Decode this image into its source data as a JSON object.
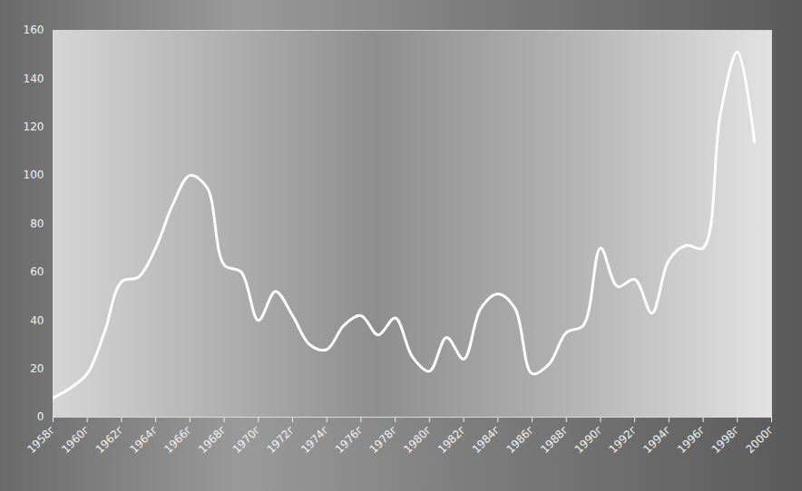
{
  "chart_data": {
    "type": "line",
    "x": [
      1958,
      1959,
      1960,
      1961,
      1962,
      1963,
      1964,
      1965,
      1966,
      1967,
      1968,
      1969,
      1970,
      1971,
      1972,
      1973,
      1974,
      1975,
      1976,
      1977,
      1978,
      1979,
      1980,
      1981,
      1982,
      1983,
      1984,
      1985,
      1986,
      1987,
      1988,
      1989,
      1990,
      1991,
      1992,
      1993,
      1994,
      1995,
      1996,
      1997,
      1998,
      1999
    ],
    "values": [
      8,
      12,
      18,
      35,
      56,
      58,
      70,
      88,
      100,
      95,
      63,
      60,
      40,
      52,
      42,
      30,
      28,
      38,
      42,
      34,
      41,
      25,
      19,
      33,
      24,
      45,
      51,
      45,
      18,
      22,
      35,
      38,
      70,
      54,
      57,
      43,
      65,
      71,
      70,
      125,
      151,
      114
    ],
    "color": "#ffffff",
    "xlim": [
      1958,
      2000
    ],
    "xticks": [
      {
        "value": 1958,
        "label": "1958г"
      },
      {
        "value": 1960,
        "label": "1960г"
      },
      {
        "value": 1962,
        "label": "1962г"
      },
      {
        "value": 1964,
        "label": "1964г"
      },
      {
        "value": 1966,
        "label": "1966г"
      },
      {
        "value": 1968,
        "label": "1968г"
      },
      {
        "value": 1970,
        "label": "1970г"
      },
      {
        "value": 1972,
        "label": "1972г"
      },
      {
        "value": 1974,
        "label": "1974г"
      },
      {
        "value": 1976,
        "label": "1976г"
      },
      {
        "value": 1978,
        "label": "1978г"
      },
      {
        "value": 1980,
        "label": "1980г"
      },
      {
        "value": 1982,
        "label": "1982г"
      },
      {
        "value": 1984,
        "label": "1984г"
      },
      {
        "value": 1986,
        "label": "1986г"
      },
      {
        "value": 1988,
        "label": "1988г"
      },
      {
        "value": 1990,
        "label": "1990г"
      },
      {
        "value": 1992,
        "label": "1992г"
      },
      {
        "value": 1994,
        "label": "1994г"
      },
      {
        "value": 1996,
        "label": "1996г"
      },
      {
        "value": 1998,
        "label": "1998г"
      },
      {
        "value": 2000,
        "label": "2000г"
      }
    ],
    "ylim": [
      0,
      160
    ],
    "yticks": [
      0,
      20,
      40,
      60,
      80,
      100,
      120,
      140,
      160
    ],
    "grid": false
  }
}
